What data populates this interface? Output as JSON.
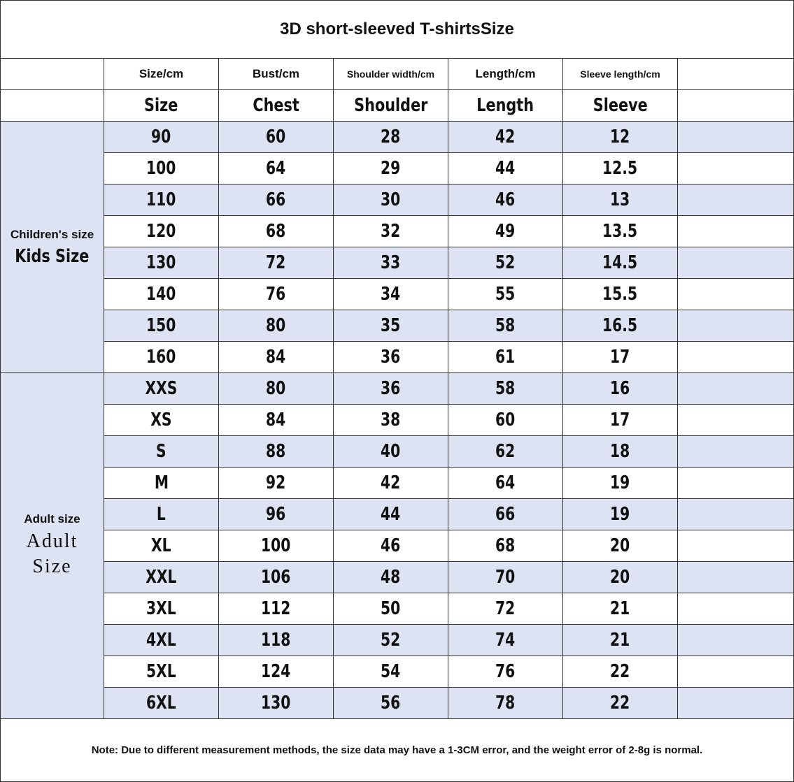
{
  "title": "3D short-sleeved T-shirtsSize",
  "header": {
    "units": [
      "Size/cm",
      "Bust/cm",
      "Shoulder width/cm",
      "Length/cm",
      "Sleeve length/cm"
    ],
    "names": [
      "Size",
      "Chest",
      "Shoulder",
      "Length",
      "Sleeve"
    ]
  },
  "groups": [
    {
      "label": "Children's size",
      "sublabel": "Kids Size",
      "rows": [
        [
          90,
          60,
          28,
          42,
          12
        ],
        [
          100,
          64,
          29,
          44,
          12.5
        ],
        [
          110,
          66,
          30,
          46,
          13
        ],
        [
          120,
          68,
          32,
          49,
          13.5
        ],
        [
          130,
          72,
          33,
          52,
          14.5
        ],
        [
          140,
          76,
          34,
          55,
          15.5
        ],
        [
          150,
          80,
          35,
          58,
          16.5
        ],
        [
          160,
          84,
          36,
          61,
          17
        ]
      ]
    },
    {
      "label": "Adult size",
      "sublabel": "Adult Size",
      "rows": [
        [
          "XXS",
          80,
          36,
          58,
          16
        ],
        [
          "XS",
          84,
          38,
          60,
          17
        ],
        [
          "S",
          88,
          40,
          62,
          18
        ],
        [
          "M",
          92,
          42,
          64,
          19
        ],
        [
          "L",
          96,
          44,
          66,
          19
        ],
        [
          "XL",
          100,
          46,
          68,
          20
        ],
        [
          "XXL",
          106,
          48,
          70,
          20
        ],
        [
          "3XL",
          112,
          50,
          72,
          21
        ],
        [
          "4XL",
          118,
          52,
          74,
          21
        ],
        [
          "5XL",
          124,
          54,
          76,
          22
        ],
        [
          "6XL",
          130,
          56,
          78,
          22
        ]
      ]
    }
  ],
  "note": "Note: Due to different measurement methods, the size data may have a 1-3CM error, and the weight error of 2-8g is normal."
}
